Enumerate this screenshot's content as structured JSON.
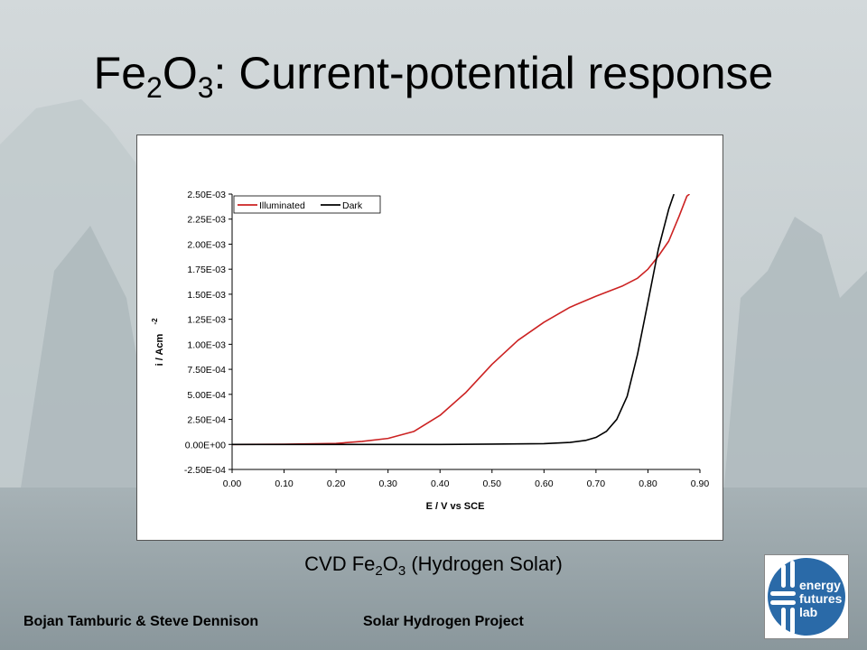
{
  "slide": {
    "title_main": "Fe",
    "title_sub1": "2",
    "title_mid": "O",
    "title_sub2": "3",
    "title_rest": ": Current-potential response",
    "caption_pre": "CVD Fe",
    "caption_sub1": "2",
    "caption_mid": "O",
    "caption_sub2": "3",
    "caption_post": " (Hydrogen Solar)",
    "footer_authors": "Bojan Tamburic & Steve Dennison",
    "footer_project": "Solar Hydrogen Project",
    "logo_text": [
      "energy",
      "futures",
      "lab"
    ],
    "logo_color": "#2a6aa8"
  },
  "chart_data": {
    "type": "line",
    "title": "",
    "xlabel": "E / V vs SCE",
    "ylabel": "i / Acm",
    "ylabel_sup": "-2",
    "xlim": [
      0,
      0.9
    ],
    "ylim": [
      -0.00025,
      0.0025
    ],
    "x_ticks": [
      "0.00",
      "0.10",
      "0.20",
      "0.30",
      "0.40",
      "0.50",
      "0.60",
      "0.70",
      "0.80",
      "0.90"
    ],
    "y_ticks": [
      "-2.50E-04",
      "0.00E+00",
      "2.50E-04",
      "5.00E-04",
      "7.50E-04",
      "1.00E-03",
      "1.25E-03",
      "1.50E-03",
      "1.75E-03",
      "2.00E-03",
      "2.25E-03",
      "2.50E-03"
    ],
    "grid": false,
    "legend": "top-left",
    "series": [
      {
        "name": "Illuminated",
        "color": "#cc2222",
        "x": [
          0.0,
          0.1,
          0.2,
          0.25,
          0.3,
          0.35,
          0.4,
          0.45,
          0.5,
          0.55,
          0.6,
          0.65,
          0.7,
          0.75,
          0.78,
          0.8,
          0.82,
          0.84,
          0.86,
          0.875,
          0.88
        ],
        "y": [
          0.0,
          2e-06,
          1e-05,
          3e-05,
          6e-05,
          0.00013,
          0.00029,
          0.00052,
          0.0008,
          0.00104,
          0.00122,
          0.00137,
          0.00148,
          0.00158,
          0.00166,
          0.00175,
          0.00188,
          0.00203,
          0.00228,
          0.00248,
          0.0025
        ]
      },
      {
        "name": "Dark",
        "color": "#000000",
        "x": [
          0.0,
          0.2,
          0.4,
          0.5,
          0.6,
          0.65,
          0.68,
          0.7,
          0.72,
          0.74,
          0.76,
          0.78,
          0.8,
          0.82,
          0.83,
          0.84,
          0.85
        ],
        "y": [
          0.0,
          0.0,
          0.0,
          3e-06,
          8e-06,
          2e-05,
          4e-05,
          7e-05,
          0.00013,
          0.00025,
          0.00048,
          0.0009,
          0.00142,
          0.00195,
          0.00215,
          0.00235,
          0.0025
        ]
      }
    ]
  }
}
